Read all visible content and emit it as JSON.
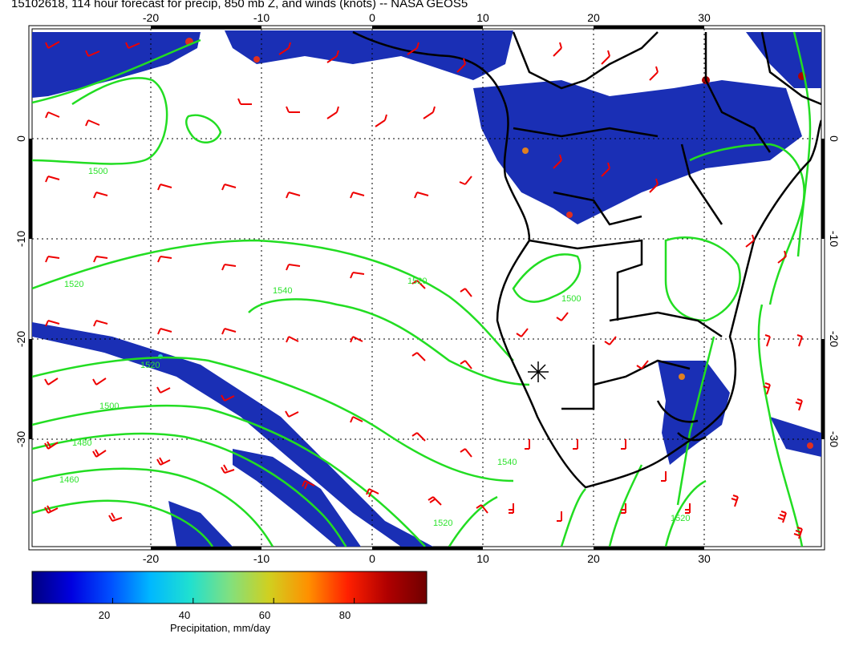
{
  "title": "15102618, 114 hour forecast for precip, 850 mb Z, and winds (knots) -- NASA GEOS5",
  "map": {
    "lon_range": [
      -31,
      40
    ],
    "lat_range": [
      12,
      -40
    ],
    "lon_ticks": [
      "-20",
      "-10",
      "0",
      "10",
      "20",
      "30"
    ],
    "lat_ticks": [
      "0",
      "-10",
      "-20",
      "-30"
    ],
    "contour_labels": [
      "1500",
      "1520",
      "1540",
      "1520",
      "1520",
      "1500",
      "1540",
      "1480",
      "1460",
      "1520",
      "1500",
      "1520"
    ],
    "colors": {
      "contour": "#22dd22",
      "wind_barb": "#ee0000",
      "coastline": "#000000",
      "precip_low": "#0a1ea0"
    }
  },
  "colorbar": {
    "label": "Precipitation, mm/day",
    "ticks": [
      "20",
      "40",
      "60",
      "80"
    ],
    "tick_values": [
      20,
      40,
      60,
      80
    ],
    "range": [
      0,
      98
    ],
    "colors": [
      "#00007f",
      "#0000e0",
      "#0050ff",
      "#00b8ff",
      "#20e0d0",
      "#80e080",
      "#d0d020",
      "#ff9000",
      "#ff2000",
      "#b00000",
      "#700000"
    ]
  }
}
